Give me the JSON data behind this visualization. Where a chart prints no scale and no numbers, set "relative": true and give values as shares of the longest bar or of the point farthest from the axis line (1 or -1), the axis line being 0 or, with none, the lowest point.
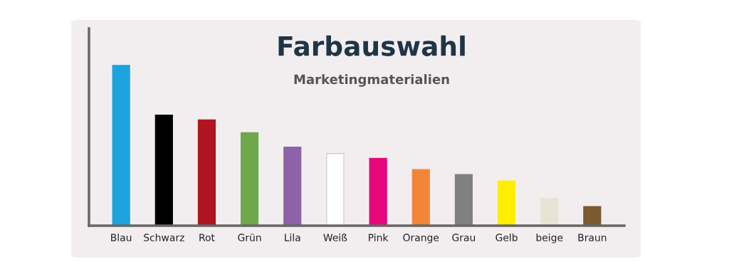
{
  "chart_data": {
    "type": "bar",
    "title": "Farbauswahl",
    "subtitle": "Marketingmaterialien",
    "relative": true,
    "categories": [
      "Blau",
      "Schwarz",
      "Rot",
      "Grün",
      "Lila",
      "Weiß",
      "Pink",
      "Orange",
      "Grau",
      "Gelb",
      "beige",
      "Braun"
    ],
    "values": [
      1,
      0.69,
      0.66,
      0.58,
      0.49,
      0.45,
      0.42,
      0.35,
      0.32,
      0.28,
      0.17,
      0.12
    ],
    "colors": [
      "#1aa3dc",
      "#000000",
      "#b0151f",
      "#6fa84a",
      "#8e62a8",
      "#ffffff",
      "#e6087a",
      "#f28538",
      "#808080",
      "#ffee00",
      "#e8e3d3",
      "#7a5a2e"
    ]
  }
}
